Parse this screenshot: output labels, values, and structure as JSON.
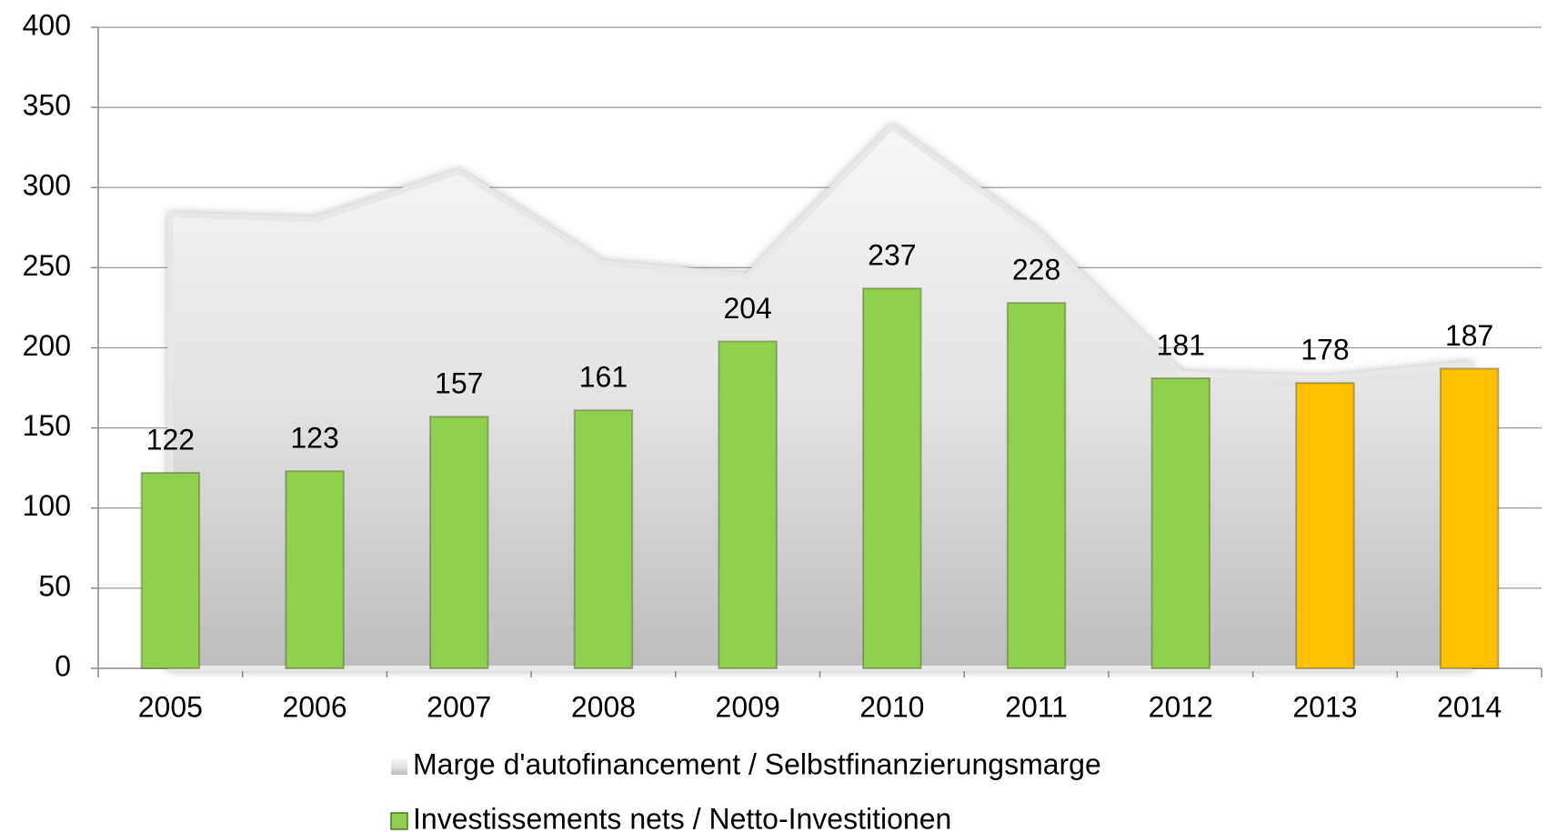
{
  "chart_data": {
    "type": "bar",
    "categories": [
      "2005",
      "2006",
      "2007",
      "2008",
      "2009",
      "2010",
      "2011",
      "2012",
      "2013",
      "2014"
    ],
    "series": [
      {
        "name": "Marge d'autofinancement / Selbstfinanzierungsmarge",
        "type": "area",
        "color": "#d0d0d0",
        "values": [
          283,
          280,
          310,
          253,
          245,
          338,
          273,
          184,
          181,
          190
        ]
      },
      {
        "name": "Investissements nets / Netto-Investitionen",
        "type": "bar",
        "color": "#8fd14f",
        "colors": [
          "#8fd14f",
          "#8fd14f",
          "#8fd14f",
          "#8fd14f",
          "#8fd14f",
          "#8fd14f",
          "#8fd14f",
          "#8fd14f",
          "#ffc000",
          "#ffc000"
        ],
        "values": [
          122,
          123,
          157,
          161,
          204,
          237,
          228,
          181,
          178,
          187
        ]
      }
    ],
    "ylim": [
      0,
      400
    ],
    "yticks": [
      0,
      50,
      100,
      150,
      200,
      250,
      300,
      350,
      400
    ],
    "grid": true,
    "legend": "bottom"
  }
}
